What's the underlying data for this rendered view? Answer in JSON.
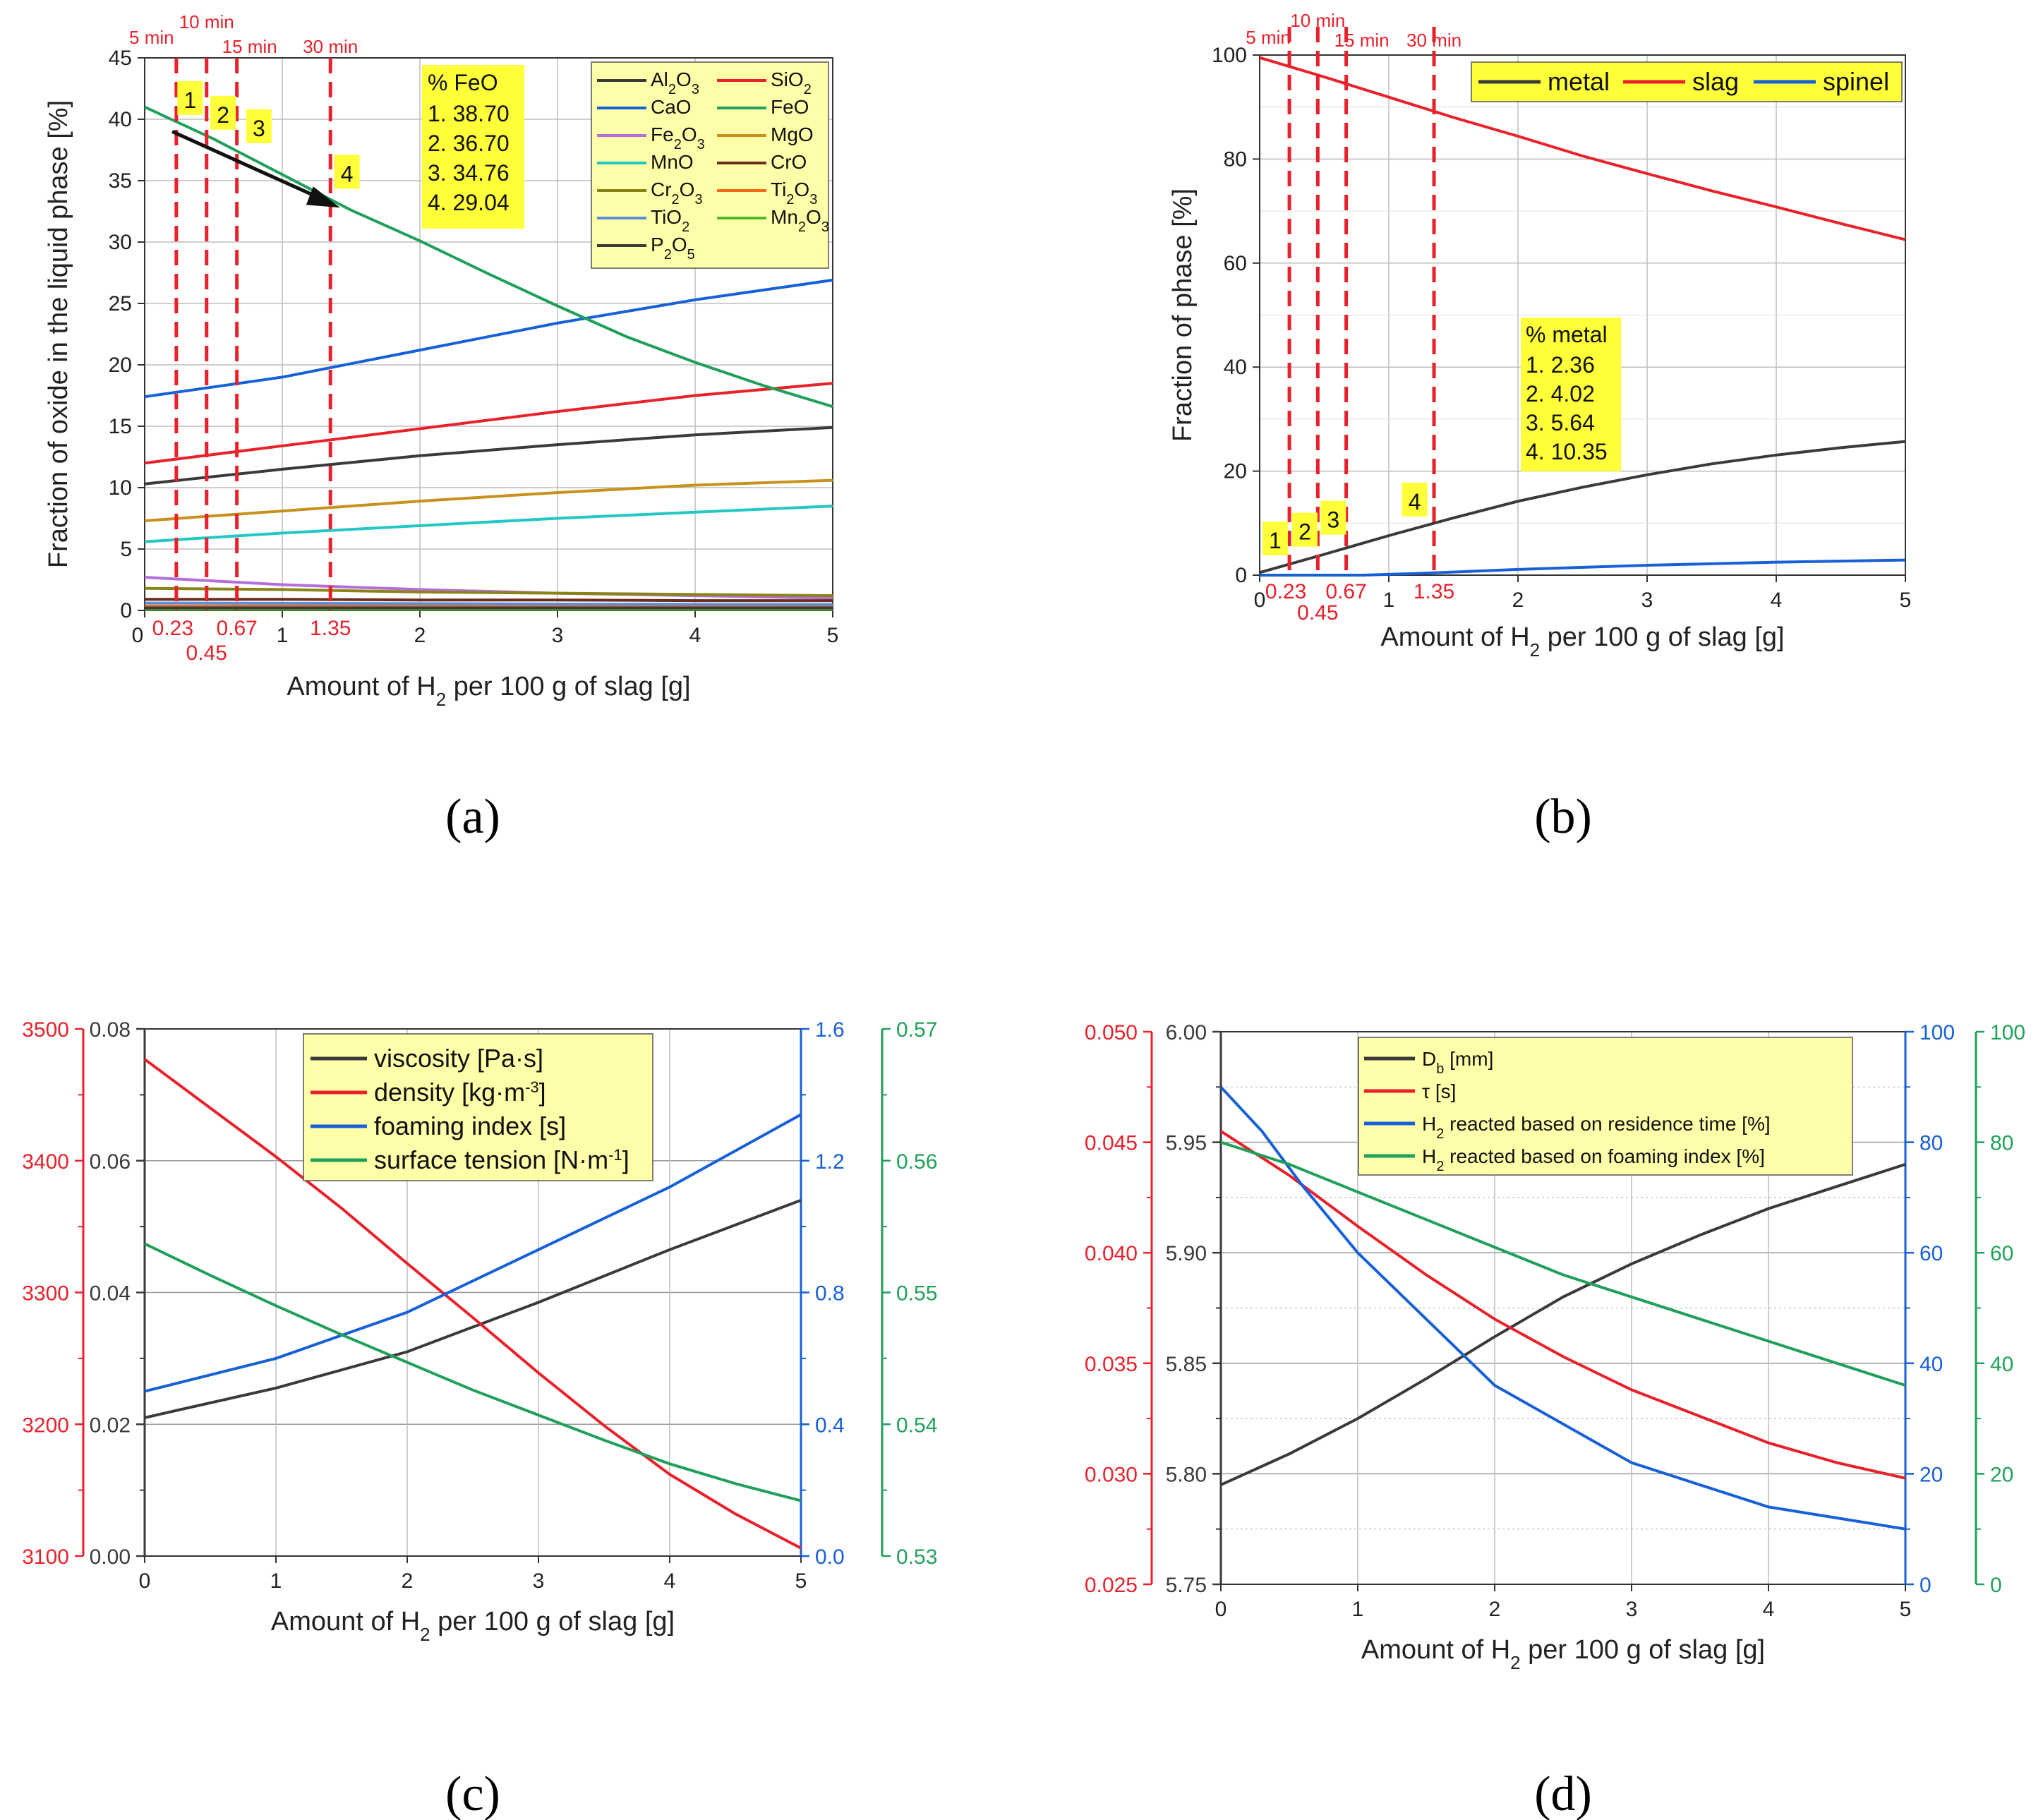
{
  "panels": {
    "a": "(a)",
    "b": "(b)",
    "c": "(c)",
    "d": "(d)"
  },
  "colors": {
    "black": "#3a3a3a",
    "red": "#e8212b",
    "blue": "#1760d8",
    "green": "#20a05a",
    "purple": "#b56ed8",
    "gold": "#c8901c",
    "cyan": "#23c7c5",
    "brown": "#6b2e1e",
    "olive": "#8a8418",
    "orange": "#f26a1b",
    "steel": "#5a8fd8",
    "lgreen": "#55b82c",
    "highlight": "#ffff3a"
  },
  "chart_data": [
    {
      "id": "a",
      "type": "line",
      "xlabel_pre": "Amount of H",
      "xlabel_sub": "2",
      "xlabel_post": " per 100 g of slag [g]",
      "ylabel": "Fraction of oxide in the liquid phase [%]",
      "xlim": [
        0,
        5
      ],
      "ylim": [
        0,
        45
      ],
      "xticks": [
        0,
        1,
        2,
        3,
        4,
        5
      ],
      "yticks": [
        0,
        5,
        10,
        15,
        20,
        25,
        30,
        35,
        40,
        45
      ],
      "xtick_labels": [
        "0",
        "1",
        "2",
        "3",
        "4",
        "5"
      ],
      "ytick_labels": [
        "0",
        "5",
        "10",
        "15",
        "20",
        "25",
        "30",
        "35",
        "40",
        "45"
      ],
      "vlines": [
        {
          "x": 0.23,
          "time": "5 min",
          "value_label": "0.23"
        },
        {
          "x": 0.45,
          "time": "10 min",
          "value_label": "0.45"
        },
        {
          "x": 0.67,
          "time": "15 min",
          "value_label": "0.67"
        },
        {
          "x": 1.35,
          "time": "30 min",
          "value_label": "1.35"
        }
      ],
      "markers": [
        {
          "label": "1",
          "x": 0.33,
          "y": 41.5
        },
        {
          "label": "2",
          "x": 0.57,
          "y": 40.3
        },
        {
          "label": "3",
          "x": 0.83,
          "y": 39.2
        },
        {
          "label": "4",
          "x": 1.47,
          "y": 35.5
        }
      ],
      "arrow": {
        "x1": 0.2,
        "y1": 39.0,
        "x2": 1.42,
        "y2": 32.8
      },
      "annotation": {
        "title": "% FeO",
        "lines": [
          "1. 38.70",
          "2. 36.70",
          "3. 34.76",
          "4. 29.04"
        ]
      },
      "series": [
        {
          "name": "Al2O3",
          "label_main": "Al",
          "label_sub1": "2",
          "label_mid": "O",
          "label_sub2": "3",
          "color": "#3a3a3a",
          "x": [
            0,
            1,
            2,
            3,
            4,
            5
          ],
          "y": [
            10.3,
            11.5,
            12.6,
            13.5,
            14.3,
            14.9
          ]
        },
        {
          "name": "SiO2",
          "label_main": "SiO",
          "label_sub1": "2",
          "label_mid": "",
          "label_sub2": "",
          "color": "#e8212b",
          "x": [
            0,
            1,
            2,
            3,
            4,
            5
          ],
          "y": [
            12.0,
            13.4,
            14.8,
            16.2,
            17.5,
            18.5
          ]
        },
        {
          "name": "CaO",
          "label_main": "CaO",
          "label_sub1": "",
          "label_mid": "",
          "label_sub2": "",
          "color": "#1760d8",
          "x": [
            0,
            1,
            2,
            3,
            4,
            5
          ],
          "y": [
            17.4,
            19.0,
            21.2,
            23.4,
            25.3,
            26.9
          ]
        },
        {
          "name": "FeO",
          "label_main": "FeO",
          "label_sub1": "",
          "label_mid": "",
          "label_sub2": "",
          "color": "#20a05a",
          "x": [
            0,
            0.5,
            1,
            1.5,
            2,
            2.5,
            3,
            3.5,
            4,
            4.5,
            5
          ],
          "y": [
            41.0,
            38.4,
            35.5,
            32.6,
            30.1,
            27.4,
            24.8,
            22.3,
            20.2,
            18.3,
            16.6
          ]
        },
        {
          "name": "Fe2O3",
          "label_main": "Fe",
          "label_sub1": "2",
          "label_mid": "O",
          "label_sub2": "3",
          "color": "#b56ed8",
          "x": [
            0,
            1,
            2,
            3,
            4,
            5
          ],
          "y": [
            2.7,
            2.1,
            1.7,
            1.4,
            1.2,
            1.0
          ]
        },
        {
          "name": "MgO",
          "label_main": "MgO",
          "label_sub1": "",
          "label_mid": "",
          "label_sub2": "",
          "color": "#c8901c",
          "x": [
            0,
            1,
            2,
            3,
            4,
            5
          ],
          "y": [
            7.3,
            8.1,
            8.9,
            9.6,
            10.2,
            10.6
          ]
        },
        {
          "name": "MnO",
          "label_main": "MnO",
          "label_sub1": "",
          "label_mid": "",
          "label_sub2": "",
          "color": "#23c7c5",
          "x": [
            0,
            1,
            2,
            3,
            4,
            5
          ],
          "y": [
            5.6,
            6.3,
            6.9,
            7.5,
            8.0,
            8.5
          ]
        },
        {
          "name": "CrO",
          "label_main": "CrO",
          "label_sub1": "",
          "label_mid": "",
          "label_sub2": "",
          "color": "#6b2e1e",
          "x": [
            0,
            1,
            2,
            3,
            4,
            5
          ],
          "y": [
            0.9,
            0.9,
            0.85,
            0.85,
            0.8,
            0.8
          ]
        },
        {
          "name": "Cr2O3",
          "label_main": "Cr",
          "label_sub1": "2",
          "label_mid": "O",
          "label_sub2": "3",
          "color": "#8a8418",
          "x": [
            0,
            1,
            2,
            3,
            4,
            5
          ],
          "y": [
            1.8,
            1.7,
            1.5,
            1.4,
            1.3,
            1.2
          ]
        },
        {
          "name": "Ti2O3",
          "label_main": "Ti",
          "label_sub1": "2",
          "label_mid": "O",
          "label_sub2": "3",
          "color": "#f26a1b",
          "x": [
            0,
            1,
            2,
            3,
            4,
            5
          ],
          "y": [
            0.35,
            0.35,
            0.35,
            0.35,
            0.35,
            0.35
          ]
        },
        {
          "name": "TiO2",
          "label_main": "TiO",
          "label_sub1": "2",
          "label_mid": "",
          "label_sub2": "",
          "color": "#5a8fd8",
          "x": [
            0,
            1,
            2,
            3,
            4,
            5
          ],
          "y": [
            0.6,
            0.58,
            0.55,
            0.52,
            0.5,
            0.48
          ]
        },
        {
          "name": "Mn2O3",
          "label_main": "Mn",
          "label_sub1": "2",
          "label_mid": "O",
          "label_sub2": "3",
          "color": "#55b82c",
          "x": [
            0,
            1,
            2,
            3,
            4,
            5
          ],
          "y": [
            0.1,
            0.1,
            0.1,
            0.1,
            0.1,
            0.1
          ]
        },
        {
          "name": "P2O5",
          "label_main": "P",
          "label_sub1": "2",
          "label_mid": "O",
          "label_sub2": "5",
          "color": "#3a3a3a",
          "x": [
            0,
            1,
            2,
            3,
            4,
            5
          ],
          "y": [
            0.2,
            0.2,
            0.2,
            0.2,
            0.2,
            0.2
          ]
        }
      ]
    },
    {
      "id": "b",
      "type": "line",
      "xlabel_pre": "Amount of H",
      "xlabel_sub": "2",
      "xlabel_post": " per 100 g of slag [g]",
      "ylabel": "Fraction of phase [%]",
      "xlim": [
        0,
        5
      ],
      "ylim": [
        0,
        100
      ],
      "xticks": [
        0,
        1,
        2,
        3,
        4,
        5
      ],
      "yticks": [
        0,
        20,
        40,
        60,
        80,
        100
      ],
      "xtick_labels": [
        "0",
        "1",
        "2",
        "3",
        "4",
        "5"
      ],
      "ytick_labels": [
        "0",
        "20",
        "40",
        "60",
        "80",
        "100"
      ],
      "vlines": [
        {
          "x": 0.23,
          "time": "5 min",
          "value_label": "0.23"
        },
        {
          "x": 0.45,
          "time": "10 min",
          "value_label": "0.45"
        },
        {
          "x": 0.67,
          "time": "15 min",
          "value_label": "0.67"
        },
        {
          "x": 1.35,
          "time": "30 min",
          "value_label": "1.35"
        }
      ],
      "markers": [
        {
          "label": "1",
          "x": 0.12,
          "y": 6.5
        },
        {
          "label": "2",
          "x": 0.35,
          "y": 8.2
        },
        {
          "label": "3",
          "x": 0.57,
          "y": 10.5
        },
        {
          "label": "4",
          "x": 1.2,
          "y": 14.0
        }
      ],
      "annotation": {
        "title": "% metal",
        "lines": [
          "1. 2.36",
          "2. 4.02",
          "3. 5.64",
          "4. 10.35"
        ]
      },
      "series": [
        {
          "name": "metal",
          "color": "#3a3a3a",
          "x": [
            0,
            0.5,
            1,
            1.5,
            2,
            2.5,
            3,
            3.5,
            4,
            4.5,
            5
          ],
          "y": [
            0.5,
            4.0,
            7.6,
            11.0,
            14.2,
            16.9,
            19.3,
            21.4,
            23.1,
            24.5,
            25.7
          ]
        },
        {
          "name": "slag",
          "color": "#e8212b",
          "x": [
            0,
            0.5,
            1,
            1.5,
            2,
            2.5,
            3,
            3.5,
            4,
            4.5,
            5
          ],
          "y": [
            99.5,
            95.8,
            91.9,
            88.0,
            84.4,
            80.6,
            77.2,
            73.9,
            70.8,
            67.6,
            64.5
          ]
        },
        {
          "name": "spinel",
          "color": "#1760d8",
          "x": [
            0,
            0.8,
            1.2,
            2,
            3,
            4,
            5
          ],
          "y": [
            0,
            0,
            0.3,
            1.1,
            1.9,
            2.5,
            2.9
          ]
        }
      ]
    },
    {
      "id": "c",
      "type": "line",
      "xlabel_pre": "Amount of H",
      "xlabel_sub": "2",
      "xlabel_post": " per 100 g of slag [g]",
      "xlim": [
        0,
        5
      ],
      "xticks": [
        0,
        1,
        2,
        3,
        4,
        5
      ],
      "xtick_labels": [
        "0",
        "1",
        "2",
        "3",
        "4",
        "5"
      ],
      "axes": {
        "left_outer": {
          "color": "#e8212b",
          "range": [
            3100,
            3500
          ],
          "ticks": [
            "3100",
            "3200",
            "3300",
            "3400",
            "3500"
          ]
        },
        "left_inner": {
          "color": "#3a3a3a",
          "range": [
            0,
            0.08
          ],
          "ticks": [
            "0.00",
            "0.02",
            "0.04",
            "0.06",
            "0.08"
          ]
        },
        "right_inner": {
          "color": "#1760d8",
          "range": [
            0,
            1.6
          ],
          "ticks": [
            "0.0",
            "0.4",
            "0.8",
            "1.2",
            "1.6"
          ]
        },
        "right_outer": {
          "color": "#20a05a",
          "range": [
            0.53,
            0.57
          ],
          "ticks": [
            "0.53",
            "0.54",
            "0.55",
            "0.56",
            "0.57"
          ]
        }
      },
      "legend": [
        {
          "pre": "viscosity [Pa·s]",
          "sup": "",
          "post": "",
          "color": "#3a3a3a"
        },
        {
          "pre": "density [kg·m",
          "sup": "-3",
          "post": "]",
          "color": "#e8212b"
        },
        {
          "pre": "foaming index [s]",
          "sup": "",
          "post": "",
          "color": "#1760d8"
        },
        {
          "pre": "surface tension [N·m",
          "sup": "-1",
          "post": "]",
          "color": "#20a05a"
        }
      ],
      "series": [
        {
          "name": "viscosity",
          "axis": "left_inner",
          "color": "#3a3a3a",
          "x": [
            0,
            1,
            2,
            3,
            4,
            5
          ],
          "y": [
            0.021,
            0.0255,
            0.031,
            0.0385,
            0.0465,
            0.054
          ]
        },
        {
          "name": "density",
          "axis": "left_outer",
          "color": "#e8212b",
          "x": [
            0,
            0.5,
            1,
            1.5,
            2,
            2.5,
            3,
            3.5,
            4,
            4.5,
            5
          ],
          "y": [
            3477,
            3440,
            3403,
            3364,
            3322,
            3281,
            3239,
            3199,
            3162,
            3132,
            3106
          ]
        },
        {
          "name": "foaming index",
          "axis": "right_inner",
          "color": "#1760d8",
          "x": [
            0,
            1,
            2,
            3,
            4,
            5
          ],
          "y": [
            0.5,
            0.6,
            0.74,
            0.93,
            1.12,
            1.34
          ]
        },
        {
          "name": "surface tension",
          "axis": "right_outer",
          "color": "#20a05a",
          "x": [
            0,
            0.5,
            1,
            1.5,
            2,
            2.5,
            3,
            3.5,
            4,
            4.5,
            5
          ],
          "y": [
            0.5537,
            0.5513,
            0.549,
            0.5468,
            0.5447,
            0.5426,
            0.5407,
            0.5388,
            0.537,
            0.5355,
            0.5342
          ]
        }
      ]
    },
    {
      "id": "d",
      "type": "line",
      "xlabel_pre": "Amount of H",
      "xlabel_sub": "2",
      "xlabel_post": " per 100 g of slag [g]",
      "xlim": [
        0,
        5
      ],
      "xticks": [
        0,
        1,
        2,
        3,
        4,
        5
      ],
      "xtick_labels": [
        "0",
        "1",
        "2",
        "3",
        "4",
        "5"
      ],
      "axes": {
        "left_outer": {
          "color": "#e8212b",
          "range": [
            0.025,
            0.05
          ],
          "ticks": [
            "0.025",
            "0.030",
            "0.035",
            "0.040",
            "0.045",
            "0.050"
          ]
        },
        "left_inner": {
          "color": "#3a3a3a",
          "range": [
            5.75,
            6.0
          ],
          "ticks": [
            "5.75",
            "5.80",
            "5.85",
            "5.90",
            "5.95",
            "6.00"
          ]
        },
        "right_inner": {
          "color": "#1760d8",
          "range": [
            0,
            100
          ],
          "ticks": [
            "0",
            "20",
            "40",
            "60",
            "80",
            "100"
          ]
        },
        "right_outer": {
          "color": "#20a05a",
          "range": [
            0,
            100
          ],
          "ticks": [
            "0",
            "20",
            "40",
            "60",
            "80",
            "100"
          ]
        }
      },
      "legend": [
        {
          "pre": "D",
          "sub": "b",
          "post": " [mm]",
          "color": "#3a3a3a"
        },
        {
          "pre": "τ [s]",
          "sub": "",
          "post": "",
          "color": "#e8212b"
        },
        {
          "pre": "H",
          "sub": "2",
          "post": " reacted based on residence time [%]",
          "color": "#1760d8"
        },
        {
          "pre": "H",
          "sub": "2",
          "post": " reacted based on foaming index [%]",
          "color": "#20a05a"
        }
      ],
      "series": [
        {
          "name": "Db",
          "axis": "left_inner",
          "color": "#3a3a3a",
          "x": [
            0,
            0.5,
            1,
            1.5,
            2,
            2.5,
            3,
            3.5,
            4,
            4.5,
            5
          ],
          "y": [
            5.795,
            5.809,
            5.825,
            5.843,
            5.862,
            5.88,
            5.895,
            5.908,
            5.92,
            5.93,
            5.94
          ]
        },
        {
          "name": "tau",
          "axis": "left_outer",
          "color": "#e8212b",
          "x": [
            0,
            0.5,
            1,
            1.5,
            2,
            2.5,
            3,
            3.5,
            4,
            4.5,
            5
          ],
          "y": [
            0.0455,
            0.0435,
            0.0412,
            0.039,
            0.037,
            0.0353,
            0.0338,
            0.0326,
            0.0314,
            0.0305,
            0.0298
          ]
        },
        {
          "name": "H2 residence",
          "axis": "right_inner",
          "color": "#1760d8",
          "x": [
            0,
            0.3,
            0.6,
            1,
            1.5,
            2,
            2.5,
            3,
            3.5,
            4,
            4.5,
            5
          ],
          "y": [
            90,
            82,
            72,
            60,
            48,
            36,
            29,
            22,
            18,
            14,
            12,
            10
          ]
        },
        {
          "name": "H2 foaming",
          "axis": "right_outer",
          "color": "#20a05a",
          "x": [
            0,
            0.5,
            1,
            1.5,
            2,
            2.5,
            3,
            3.5,
            4,
            4.5,
            5
          ],
          "y": [
            80,
            76,
            71,
            66,
            61,
            56,
            52,
            48,
            44,
            40,
            36
          ]
        }
      ]
    }
  ]
}
